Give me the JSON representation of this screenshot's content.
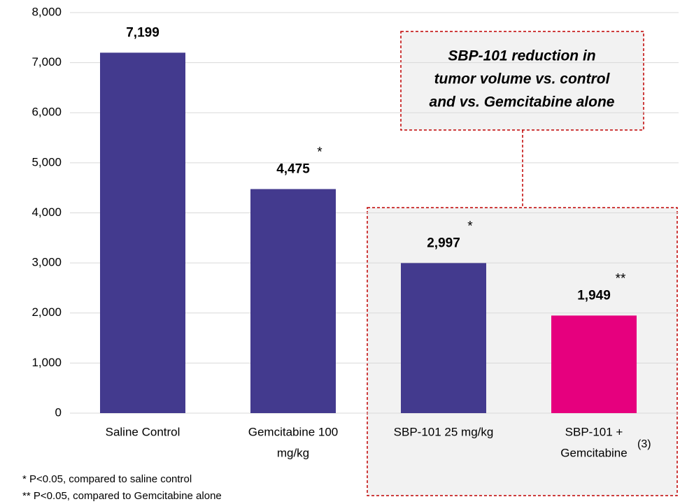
{
  "chart_data": {
    "type": "bar",
    "categories": [
      [
        "Saline Control"
      ],
      [
        "Gemcitabine 100",
        "mg/kg"
      ],
      [
        "SBP-101 25 mg/kg"
      ],
      [
        "SBP-101 +",
        "Gemcitabine"
      ]
    ],
    "values": [
      7199,
      4475,
      2997,
      1949
    ],
    "value_labels": [
      "7,199",
      "4,475",
      "2,997",
      "1,949"
    ],
    "colors": [
      "#433a8e",
      "#433a8e",
      "#433a8e",
      "#e6007e"
    ],
    "ylim": [
      0,
      8000
    ],
    "yticks": [
      0,
      {
        "value": 1000,
        "label": "1,000"
      },
      {
        "value": 2000,
        "label": "2,000"
      },
      {
        "value": 3000,
        "label": "3,000"
      },
      {
        "value": 4000,
        "label": "4,000"
      },
      {
        "value": 5000,
        "label": "5,000"
      },
      {
        "value": 6000,
        "label": "6,000"
      },
      {
        "value": 7000,
        "label": "7,000"
      },
      {
        "value": 8000,
        "label": "8,000"
      }
    ],
    "grid": true,
    "significance": [
      null,
      "*",
      "*",
      "**"
    ],
    "callout": [
      "SBP-101 reduction in",
      "tumor volume vs. control",
      "and vs. Gemcitabine alone"
    ],
    "reference": "(3)",
    "footnotes": [
      "* P<0.05, compared to saline control",
      "** P<0.05, compared to Gemcitabine alone"
    ]
  }
}
